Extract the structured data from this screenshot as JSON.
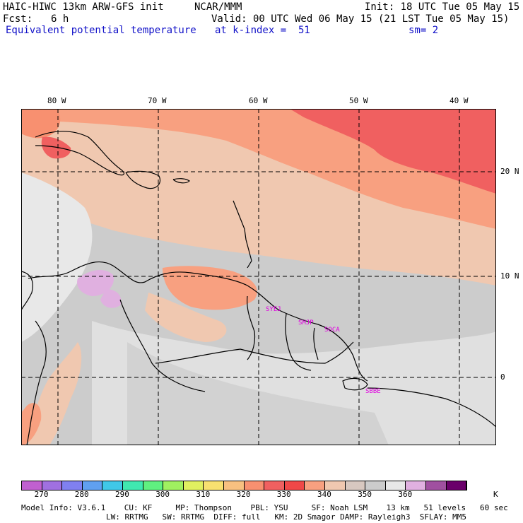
{
  "header": {
    "model": "HAIC-HIWC 13km ARW-GFS init",
    "org": "NCAR/MMM",
    "init": "Init: 18 UTC Tue 05 May 15",
    "fcst_label": "Fcst:",
    "fcst_value": "6 h",
    "valid": "Valid: 00 UTC Wed 06 May 15 (21 LST Tue 05 May 15)",
    "field": "Equivalent potential temperature",
    "level": "at k-index =  51",
    "smoothing": "sm= 2"
  },
  "map": {
    "lon_labels": [
      "80 W",
      "70 W",
      "60 W",
      "50 W",
      "40 W"
    ],
    "lat_labels": [
      "20 N",
      "10 N",
      "0"
    ],
    "station_labels": [
      "SYEJ",
      "SMJP",
      "SOCA",
      "SBBE"
    ]
  },
  "colorbar": {
    "colors": [
      "#c060d0",
      "#a070e0",
      "#8080f0",
      "#60a0f0",
      "#40c8e8",
      "#40e8b0",
      "#60f080",
      "#a0f060",
      "#e0f060",
      "#f8e070",
      "#f8c080",
      "#f89070",
      "#f06060",
      "#f04848",
      "#f8a080",
      "#f0c8b0",
      "#d8c8c0",
      "#cccccc",
      "#e8e8e8",
      "#e0b0e0",
      "#a050a0",
      "#6a006a"
    ],
    "labels": [
      "270",
      "280",
      "290",
      "300",
      "310",
      "320",
      "330",
      "340",
      "350",
      "360"
    ],
    "unit": "K"
  },
  "footer": {
    "line1": "Model Info: V3.6.1    CU: KF     MP: Thompson    PBL: YSU     SF: Noah LSM    13 km   51 levels   60 sec",
    "line2": "LW: RRTMG   SW: RRTMG  DIFF: full   KM: 2D Smagor DAMP: Rayleigh3  SFLAY: MM5"
  }
}
